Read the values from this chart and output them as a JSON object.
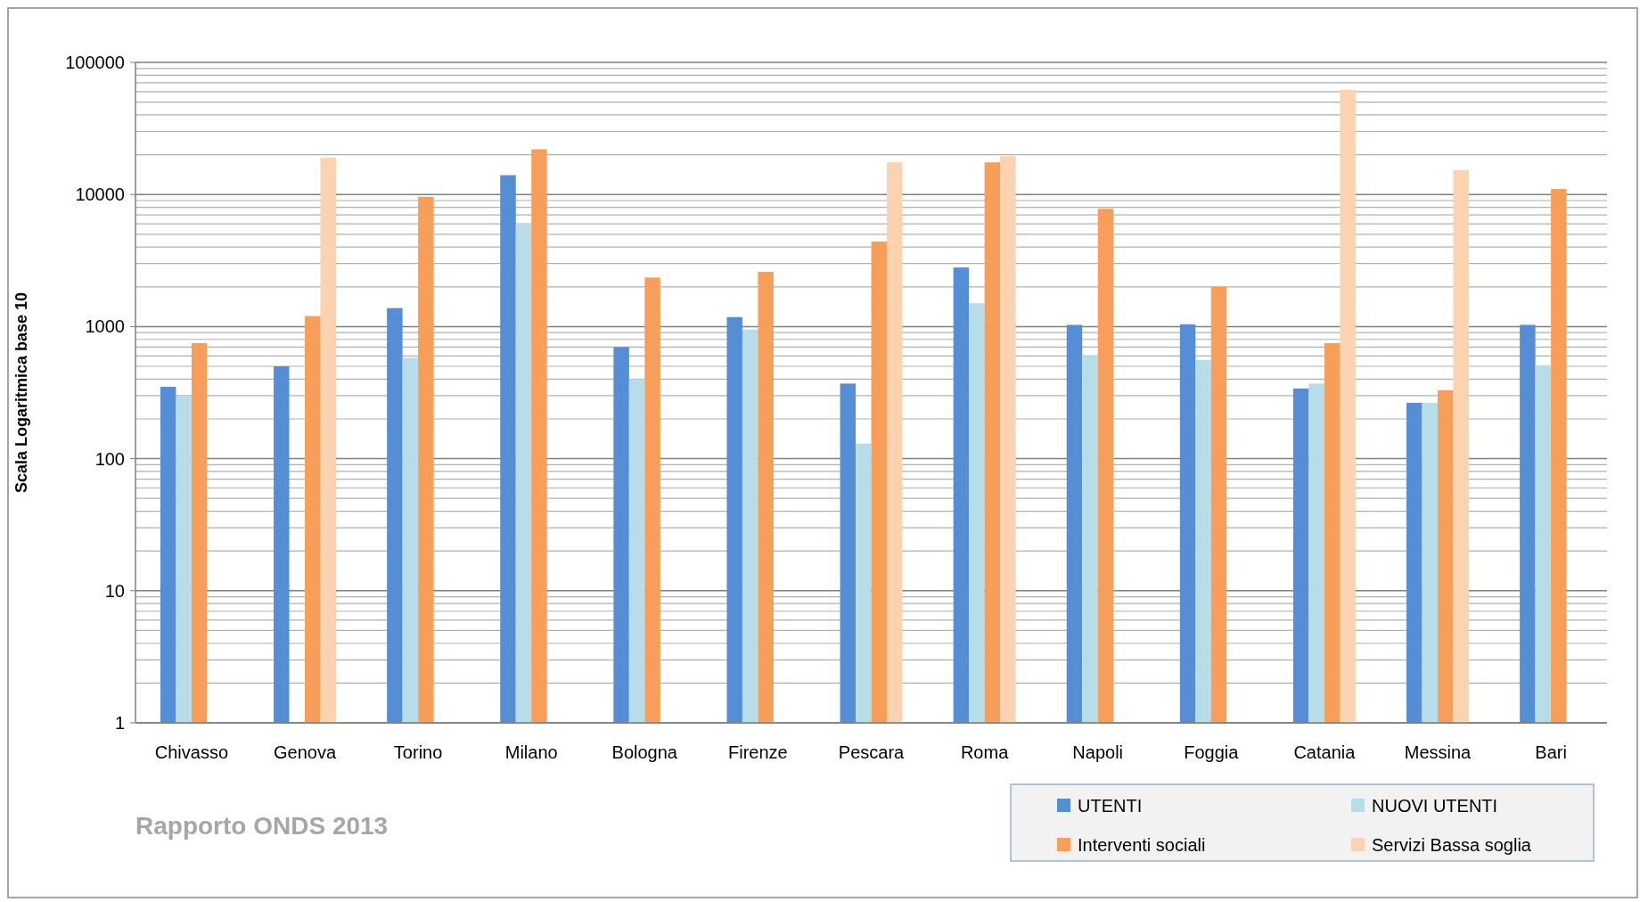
{
  "chart_data": {
    "type": "bar",
    "ylabel": "Scala Logaritmica base 10",
    "log": true,
    "grid": "y",
    "legend": "bottom right",
    "categories": [
      "Chivasso",
      "Genova",
      "Torino",
      "Milano",
      "Bologna",
      "Firenze",
      "Pescara",
      "Roma",
      "Napoli",
      "Foggia",
      "Catania",
      "Messina",
      "Bari"
    ],
    "ylim": [
      1,
      100000
    ],
    "yticks": [
      1,
      10,
      100,
      1000,
      10000,
      100000
    ],
    "series": [
      {
        "name": "UTENTI",
        "color": "#558ed5",
        "values": [
          350,
          500,
          1380,
          14000,
          700,
          1180,
          370,
          2800,
          1030,
          1040,
          340,
          265,
          1030
        ]
      },
      {
        "name": "NUOVI UTENTI",
        "color": "#b7dde8",
        "values": [
          300,
          null,
          580,
          6000,
          400,
          950,
          130,
          1500,
          600,
          560,
          370,
          265,
          510
        ]
      },
      {
        "name": "Interventi sociali",
        "color": "#f79f5a",
        "values": [
          750,
          1200,
          9600,
          22000,
          2350,
          2600,
          4400,
          17500,
          7800,
          2000,
          750,
          330,
          11000
        ]
      },
      {
        "name": "Servizi Bassa soglia",
        "color": "#fbd3b0",
        "values": [
          null,
          19000,
          null,
          null,
          null,
          null,
          17500,
          19500,
          null,
          null,
          62000,
          15300,
          null
        ]
      }
    ],
    "annotations": [
      "Rapporto ONDS 2013"
    ]
  }
}
